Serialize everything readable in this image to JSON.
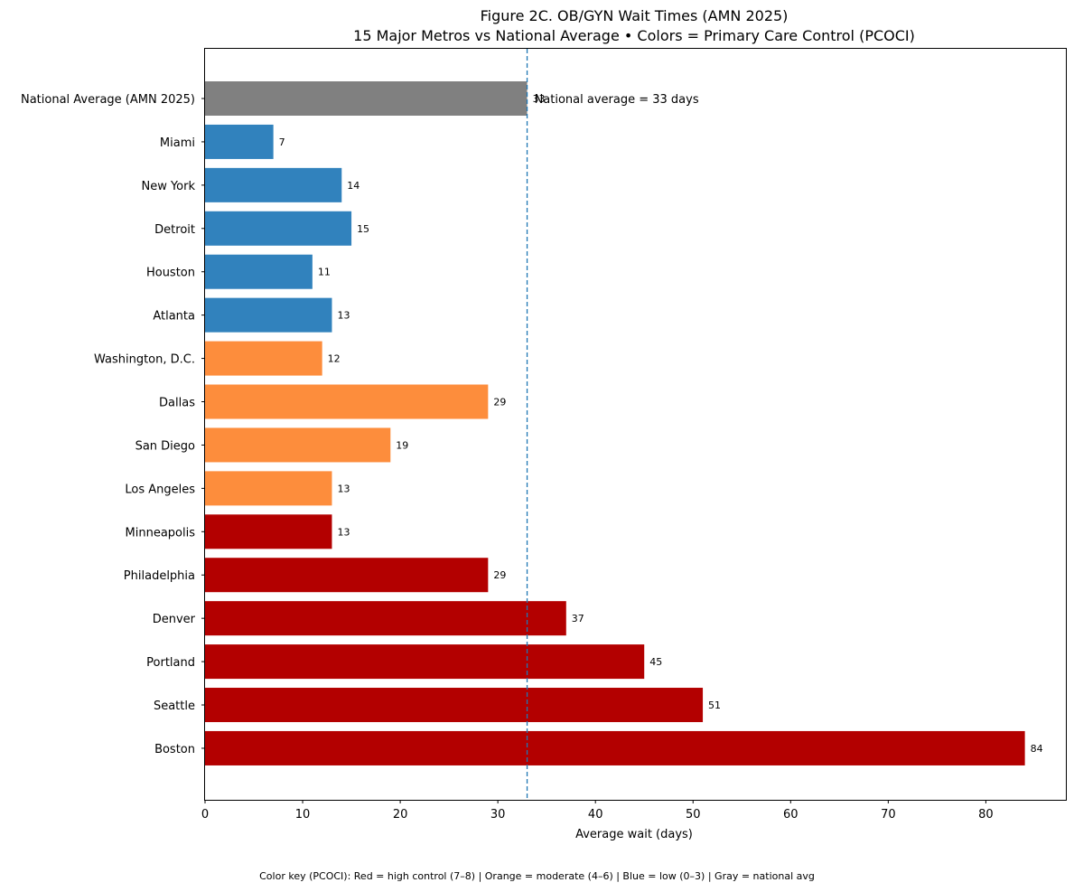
{
  "chart_data": {
    "type": "bar",
    "orientation": "horizontal",
    "title": "Figure 2C. OB/GYN Wait Times (AMN 2025)",
    "subtitle": "15 Major Metros vs National Average • Colors = Primary Care Control (PCOCI)",
    "xlabel": "Average wait (days)",
    "ylabel": "",
    "xlim": [
      0,
      88.2
    ],
    "xticks": [
      0,
      10,
      20,
      30,
      40,
      50,
      60,
      70,
      80
    ],
    "categories": [
      "National Average (AMN 2025)",
      "Miami",
      "New York",
      "Detroit",
      "Houston",
      "Atlanta",
      "Washington, D.C.",
      "Dallas",
      "San Diego",
      "Los Angeles",
      "Minneapolis",
      "Philadelphia",
      "Denver",
      "Portland",
      "Seattle",
      "Boston"
    ],
    "values": [
      33,
      7,
      14,
      15,
      11,
      13,
      12,
      29,
      19,
      13,
      13,
      29,
      37,
      45,
      51,
      84
    ],
    "control_group": [
      "national",
      "low",
      "low",
      "low",
      "low",
      "low",
      "moderate",
      "moderate",
      "moderate",
      "moderate",
      "high",
      "high",
      "high",
      "high",
      "high",
      "high"
    ],
    "colors": {
      "high": "#b30000",
      "moderate": "#fd8d3c",
      "low": "#3182bd",
      "national": "#808080",
      "reference_line": "#1f77b4"
    },
    "reference_line": {
      "value": 33,
      "label": "National average = 33 days",
      "style": "dashed"
    },
    "footnote": "Color key (PCOCI): Red = high control (7–8) | Orange = moderate (4–6) | Blue = low (0–3) | Gray = national avg",
    "grid": false,
    "legend": "none"
  }
}
